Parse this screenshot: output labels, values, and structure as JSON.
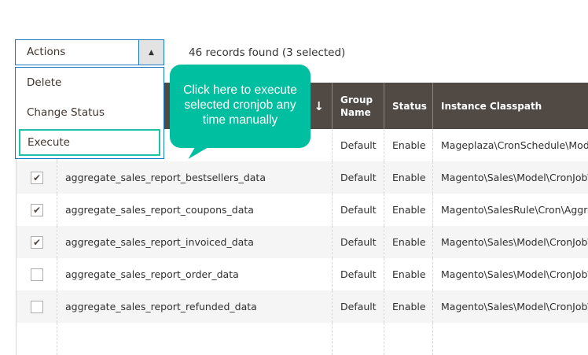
{
  "toolbar": {
    "actions_label": "Actions",
    "records": "46 records found (3 selected)"
  },
  "menu": {
    "items": [
      {
        "label": "Delete"
      },
      {
        "label": "Change Status"
      },
      {
        "label": "Execute"
      }
    ]
  },
  "tooltip": {
    "line1": "Click here to execute",
    "line2": "selected cronjob any",
    "line3": "time manually"
  },
  "table": {
    "headers": {
      "sort": "↓",
      "group": "Group Name",
      "status": "Status",
      "classpath": "Instance Classpath"
    },
    "rows": [
      {
        "checked": false,
        "name": "",
        "group": "Default",
        "status": "Enable",
        "classpath": "Mageplaza\\CronSchedule\\Model"
      },
      {
        "checked": true,
        "name": "aggregate_sales_report_bestsellers_data",
        "group": "Default",
        "status": "Enable",
        "classpath": "Magento\\Sales\\Model\\CronJob\\"
      },
      {
        "checked": true,
        "name": "aggregate_sales_report_coupons_data",
        "group": "Default",
        "status": "Enable",
        "classpath": "Magento\\SalesRule\\Cron\\Aggre"
      },
      {
        "checked": true,
        "name": "aggregate_sales_report_invoiced_data",
        "group": "Default",
        "status": "Enable",
        "classpath": "Magento\\Sales\\Model\\CronJob\\"
      },
      {
        "checked": false,
        "name": "aggregate_sales_report_order_data",
        "group": "Default",
        "status": "Enable",
        "classpath": "Magento\\Sales\\Model\\CronJob\\"
      },
      {
        "checked": false,
        "name": "aggregate_sales_report_refunded_data",
        "group": "Default",
        "status": "Enable",
        "classpath": "Magento\\Sales\\Model\\CronJob\\"
      }
    ]
  },
  "colors": {
    "accent": "#1979c3",
    "header_bg": "#514943",
    "tooltip": "#00bfa0",
    "selected_outline": "#1fc3a8"
  }
}
